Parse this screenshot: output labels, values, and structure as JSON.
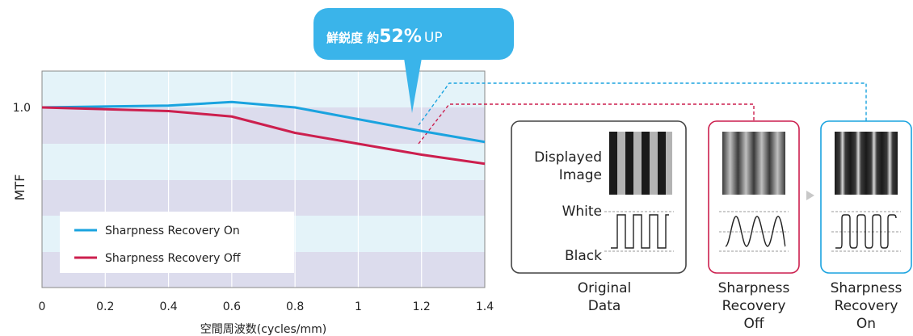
{
  "chart_data": {
    "type": "line",
    "title": "",
    "xlabel": "空間周波数(cycles/mm)",
    "ylabel": "MTF",
    "xlim": [
      0,
      1.4
    ],
    "x_ticks": [
      "0",
      "0.2",
      "0.4",
      "0.6",
      "0.8",
      "1",
      "1.2",
      "1.4"
    ],
    "y_ticks": [
      "1.0"
    ],
    "series": [
      {
        "name": "Sharpness Recovery On",
        "color": "#1aa3df",
        "x": [
          0,
          0.4,
          0.6,
          0.8,
          1.2,
          1.4
        ],
        "y": [
          1.0,
          1.01,
          1.03,
          1.0,
          0.87,
          0.81
        ]
      },
      {
        "name": "Sharpness Recovery Off",
        "color": "#cc1f4e",
        "x": [
          0,
          0.4,
          0.6,
          0.8,
          1.2,
          1.4
        ],
        "y": [
          1.0,
          0.98,
          0.95,
          0.86,
          0.74,
          0.69
        ]
      }
    ],
    "legend_position": "bottom-left",
    "callout": {
      "prefix": "鮮鋭度 約",
      "value": "52%",
      "suffix": "UP"
    }
  },
  "panels": [
    {
      "id": "original",
      "title_lines": [
        "Original",
        "Data"
      ],
      "border": "#444444",
      "row_labels": {
        "displayed": [
          "Displayed",
          "Image"
        ],
        "white": "White",
        "black": "Black"
      }
    },
    {
      "id": "off",
      "title_lines": [
        "Sharpness",
        "Recovery",
        "Off"
      ],
      "border": "#cc1f4e"
    },
    {
      "id": "on",
      "title_lines": [
        "Sharpness",
        "Recovery",
        "On"
      ],
      "border": "#1aa3df"
    }
  ],
  "colors": {
    "band_light": "#e4f3f9",
    "band_dark": "#dcdced",
    "on": "#1aa3df",
    "off": "#cc1f4e",
    "callout": "#3ab4ea"
  }
}
